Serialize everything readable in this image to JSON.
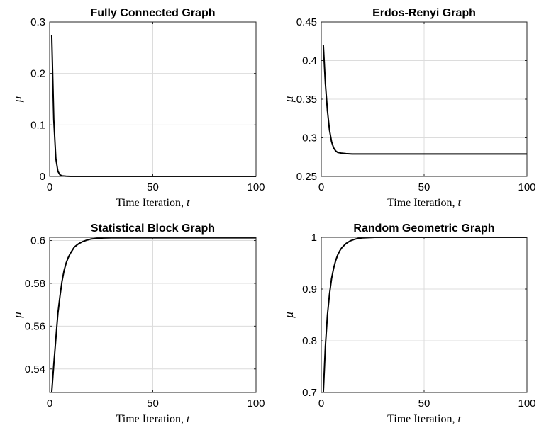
{
  "colors": {
    "line": "#000000",
    "grid": "#dcdcdc",
    "axes": "#262626"
  },
  "chart_data": [
    {
      "type": "line",
      "title": "Fully Connected Graph",
      "xlabel": "Time Iteration, ",
      "xlabel_var": "t",
      "ylabel": "μ",
      "xlim": [
        0,
        100
      ],
      "ylim": [
        0,
        0.3
      ],
      "xticks": [
        0,
        50,
        100
      ],
      "xtick_labels": [
        "0",
        "50",
        "100"
      ],
      "yticks": [
        0,
        0.1,
        0.2,
        0.3
      ],
      "ytick_labels": [
        "0",
        "0.1",
        "0.2",
        "0.3"
      ],
      "grid": true,
      "series": [
        {
          "x": [
            1,
            2,
            3,
            4,
            5,
            6,
            8,
            10,
            100
          ],
          "y": [
            0.275,
            0.11,
            0.035,
            0.01,
            0.003,
            0.001,
            0.0003,
            0,
            0
          ]
        }
      ]
    },
    {
      "type": "line",
      "title": "Erdos-Renyi Graph",
      "xlabel": "Time Iteration, ",
      "xlabel_var": "t",
      "ylabel": "μ",
      "xlim": [
        0,
        100
      ],
      "ylim": [
        0.25,
        0.45
      ],
      "xticks": [
        0,
        50,
        100
      ],
      "xtick_labels": [
        "0",
        "50",
        "100"
      ],
      "yticks": [
        0.25,
        0.3,
        0.35,
        0.4,
        0.45
      ],
      "ytick_labels": [
        "0.25",
        "0.3",
        "0.35",
        "0.4",
        "0.45"
      ],
      "grid": true,
      "series": [
        {
          "x": [
            1,
            2,
            3,
            4,
            5,
            6,
            7,
            8,
            10,
            12,
            15,
            20,
            100
          ],
          "y": [
            0.42,
            0.37,
            0.335,
            0.31,
            0.295,
            0.287,
            0.283,
            0.281,
            0.28,
            0.2795,
            0.279,
            0.279,
            0.279
          ]
        }
      ]
    },
    {
      "type": "line",
      "title": "Statistical Block Graph",
      "xlabel": "Time Iteration, ",
      "xlabel_var": "t",
      "ylabel": "μ",
      "xlim": [
        0,
        100
      ],
      "ylim": [
        0.529,
        0.6015
      ],
      "xticks": [
        0,
        50,
        100
      ],
      "xtick_labels": [
        "0",
        "50",
        "100"
      ],
      "yticks": [
        0.54,
        0.56,
        0.58,
        0.6
      ],
      "ytick_labels": [
        "0.54",
        "0.56",
        "0.58",
        "0.6"
      ],
      "grid": true,
      "series": [
        {
          "x": [
            1,
            2,
            3,
            4,
            5,
            6,
            7,
            8,
            9,
            10,
            12,
            14,
            16,
            18,
            20,
            23,
            26,
            30,
            35,
            100
          ],
          "y": [
            0.529,
            0.542,
            0.554,
            0.566,
            0.574,
            0.581,
            0.586,
            0.5895,
            0.592,
            0.594,
            0.597,
            0.5985,
            0.5995,
            0.6002,
            0.6007,
            0.601,
            0.6012,
            0.6013,
            0.6013,
            0.6013
          ]
        }
      ]
    },
    {
      "type": "line",
      "title": "Random Geometric Graph",
      "xlabel": "Time Iteration, ",
      "xlabel_var": "t",
      "ylabel": "μ",
      "xlim": [
        0,
        100
      ],
      "ylim": [
        0.7,
        1.0
      ],
      "xticks": [
        0,
        50,
        100
      ],
      "xtick_labels": [
        "0",
        "50",
        "100"
      ],
      "yticks": [
        0.7,
        0.8,
        0.9,
        1.0
      ],
      "ytick_labels": [
        "0.7",
        "0.8",
        "0.9",
        "1"
      ],
      "grid": true,
      "series": [
        {
          "x": [
            1,
            2,
            3,
            4,
            5,
            6,
            7,
            8,
            9,
            10,
            12,
            14,
            16,
            18,
            20,
            23,
            26,
            30,
            100
          ],
          "y": [
            0.7,
            0.79,
            0.85,
            0.89,
            0.92,
            0.94,
            0.955,
            0.966,
            0.974,
            0.98,
            0.988,
            0.993,
            0.996,
            0.998,
            0.999,
            0.9995,
            1.0,
            1.0,
            1.0
          ]
        }
      ]
    }
  ]
}
